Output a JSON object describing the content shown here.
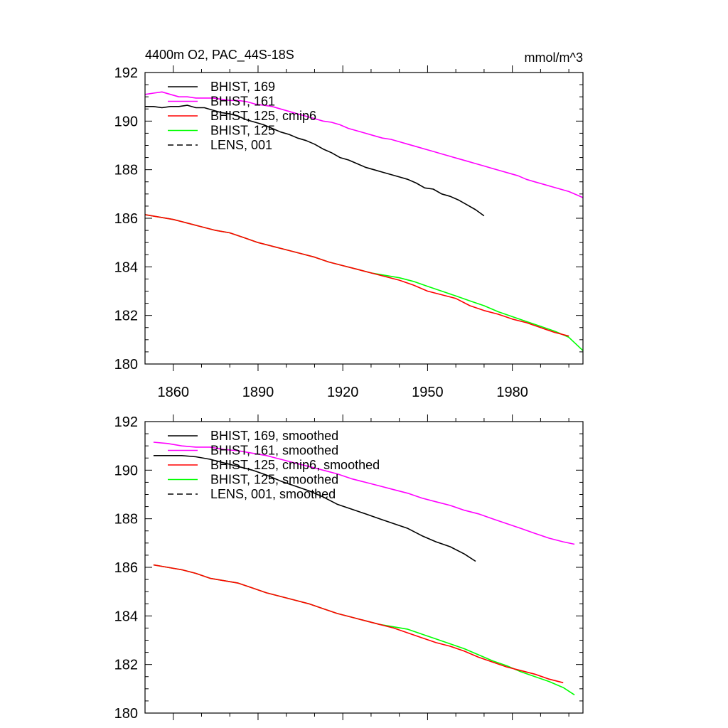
{
  "chart_data": [
    {
      "type": "line",
      "title": "4400m O2, PAC_44S-18S",
      "units": "mmol/m^3",
      "xlim": [
        1850,
        2005
      ],
      "ylim": [
        180,
        192
      ],
      "xticks": [
        1860,
        1890,
        1920,
        1950,
        1980
      ],
      "yticks": [
        180,
        182,
        184,
        186,
        188,
        190,
        192
      ],
      "legend_position": "top-left",
      "series": [
        {
          "name": "BHIST, 169",
          "color": "#000000",
          "dash": "solid",
          "x": [
            1850,
            1853,
            1856,
            1859,
            1862,
            1865,
            1868,
            1871,
            1874,
            1877,
            1880,
            1883,
            1886,
            1889,
            1892,
            1895,
            1898,
            1901,
            1904,
            1907,
            1910,
            1913,
            1916,
            1919,
            1922,
            1925,
            1928,
            1931,
            1934,
            1937,
            1940,
            1943,
            1946,
            1949,
            1952,
            1955,
            1958,
            1961,
            1964,
            1967,
            1970
          ],
          "y": [
            190.6,
            190.6,
            190.55,
            190.6,
            190.6,
            190.65,
            190.55,
            190.55,
            190.45,
            190.35,
            190.3,
            190.2,
            190.05,
            189.95,
            189.85,
            189.7,
            189.55,
            189.45,
            189.3,
            189.2,
            189.05,
            188.85,
            188.7,
            188.5,
            188.4,
            188.25,
            188.1,
            188.0,
            187.9,
            187.8,
            187.7,
            187.6,
            187.45,
            187.25,
            187.2,
            187.0,
            186.9,
            186.75,
            186.55,
            186.35,
            186.1
          ]
        },
        {
          "name": "BHIST, 161",
          "color": "#ff00ff",
          "dash": "solid",
          "x": [
            1850,
            1853,
            1856,
            1859,
            1862,
            1865,
            1868,
            1871,
            1874,
            1877,
            1880,
            1883,
            1886,
            1889,
            1892,
            1895,
            1898,
            1901,
            1904,
            1907,
            1910,
            1913,
            1916,
            1919,
            1922,
            1925,
            1928,
            1931,
            1934,
            1937,
            1940,
            1943,
            1946,
            1949,
            1952,
            1955,
            1958,
            1961,
            1964,
            1967,
            1970,
            1973,
            1976,
            1979,
            1982,
            1985,
            1988,
            1991,
            1994,
            1997,
            2000,
            2003,
            2005
          ],
          "y": [
            191.1,
            191.15,
            191.2,
            191.1,
            191.0,
            191.0,
            190.95,
            190.95,
            190.95,
            190.9,
            190.85,
            190.85,
            190.8,
            190.7,
            190.65,
            190.6,
            190.5,
            190.4,
            190.3,
            190.2,
            190.1,
            190.0,
            189.95,
            189.85,
            189.7,
            189.6,
            189.5,
            189.4,
            189.3,
            189.25,
            189.15,
            189.05,
            188.95,
            188.85,
            188.75,
            188.65,
            188.55,
            188.45,
            188.35,
            188.25,
            188.15,
            188.05,
            187.95,
            187.85,
            187.75,
            187.6,
            187.5,
            187.4,
            187.3,
            187.2,
            187.1,
            186.95,
            186.85
          ]
        },
        {
          "name": "BHIST, 125, cmip6",
          "color": "#ff0000",
          "dash": "solid",
          "x": [
            1850,
            1855,
            1860,
            1865,
            1870,
            1875,
            1880,
            1885,
            1890,
            1895,
            1900,
            1905,
            1910,
            1915,
            1920,
            1925,
            1930,
            1935,
            1940,
            1945,
            1950,
            1955,
            1960,
            1965,
            1970,
            1975,
            1980,
            1985,
            1990,
            1995,
            2000
          ],
          "y": [
            186.15,
            186.05,
            185.95,
            185.8,
            185.65,
            185.5,
            185.4,
            185.2,
            185.0,
            184.85,
            184.7,
            184.55,
            184.4,
            184.2,
            184.05,
            183.9,
            183.75,
            183.6,
            183.45,
            183.25,
            183.0,
            182.85,
            182.7,
            182.4,
            182.2,
            182.05,
            181.85,
            181.7,
            181.5,
            181.3,
            181.15
          ]
        },
        {
          "name": "BHIST, 125",
          "color": "#00ff00",
          "dash": "solid",
          "x": [
            1850,
            1855,
            1860,
            1865,
            1870,
            1875,
            1880,
            1885,
            1890,
            1895,
            1900,
            1905,
            1910,
            1915,
            1920,
            1925,
            1930,
            1935,
            1940,
            1945,
            1950,
            1955,
            1960,
            1965,
            1970,
            1975,
            1980,
            1985,
            1990,
            1995,
            2000,
            2005
          ],
          "y": [
            186.15,
            186.05,
            185.95,
            185.8,
            185.65,
            185.5,
            185.4,
            185.2,
            185.0,
            184.85,
            184.7,
            184.55,
            184.4,
            184.2,
            184.05,
            183.9,
            183.75,
            183.65,
            183.55,
            183.4,
            183.2,
            183.0,
            182.8,
            182.6,
            182.4,
            182.15,
            181.95,
            181.75,
            181.55,
            181.35,
            181.1,
            180.55
          ]
        },
        {
          "name": "LENS, 001",
          "color": "#000000",
          "dash": "dashed",
          "x": [],
          "y": []
        }
      ]
    },
    {
      "type": "line",
      "title": "",
      "units": "",
      "xlim": [
        1850,
        2005
      ],
      "ylim": [
        180,
        192
      ],
      "xticks": [
        1860,
        1890,
        1920,
        1950,
        1980
      ],
      "yticks": [
        180,
        182,
        184,
        186,
        188,
        190,
        192
      ],
      "legend_position": "top-left",
      "series": [
        {
          "name": "BHIST, 169, smoothed",
          "color": "#000000",
          "dash": "solid",
          "x": [
            1853,
            1858,
            1863,
            1868,
            1873,
            1878,
            1883,
            1888,
            1893,
            1898,
            1903,
            1908,
            1913,
            1918,
            1923,
            1928,
            1933,
            1938,
            1943,
            1948,
            1953,
            1958,
            1963,
            1967
          ],
          "y": [
            190.6,
            190.6,
            190.6,
            190.55,
            190.45,
            190.3,
            190.15,
            190.0,
            189.8,
            189.55,
            189.35,
            189.15,
            188.9,
            188.6,
            188.4,
            188.2,
            188.0,
            187.8,
            187.6,
            187.3,
            187.05,
            186.85,
            186.55,
            186.25
          ]
        },
        {
          "name": "BHIST, 161, smoothed",
          "color": "#ff00ff",
          "dash": "solid",
          "x": [
            1853,
            1858,
            1863,
            1868,
            1873,
            1878,
            1883,
            1888,
            1893,
            1898,
            1903,
            1908,
            1913,
            1918,
            1923,
            1928,
            1933,
            1938,
            1943,
            1948,
            1953,
            1958,
            1963,
            1968,
            1973,
            1978,
            1983,
            1988,
            1993,
            1998,
            2002
          ],
          "y": [
            191.15,
            191.1,
            191.0,
            190.95,
            190.95,
            190.85,
            190.8,
            190.7,
            190.6,
            190.45,
            190.3,
            190.15,
            190.0,
            189.85,
            189.65,
            189.5,
            189.35,
            189.2,
            189.05,
            188.85,
            188.7,
            188.55,
            188.35,
            188.2,
            188.0,
            187.8,
            187.6,
            187.4,
            187.2,
            187.05,
            186.95
          ]
        },
        {
          "name": "BHIST, 125, cmip6, smoothed",
          "color": "#ff0000",
          "dash": "solid",
          "x": [
            1853,
            1858,
            1863,
            1868,
            1873,
            1878,
            1883,
            1888,
            1893,
            1898,
            1903,
            1908,
            1913,
            1918,
            1923,
            1928,
            1933,
            1938,
            1943,
            1948,
            1953,
            1958,
            1963,
            1968,
            1973,
            1978,
            1983,
            1988,
            1993,
            1998
          ],
          "y": [
            186.1,
            186.0,
            185.9,
            185.75,
            185.55,
            185.45,
            185.35,
            185.15,
            184.95,
            184.8,
            184.65,
            184.5,
            184.3,
            184.1,
            183.95,
            183.8,
            183.65,
            183.5,
            183.3,
            183.1,
            182.9,
            182.75,
            182.55,
            182.3,
            182.1,
            181.9,
            181.75,
            181.6,
            181.4,
            181.25
          ]
        },
        {
          "name": "BHIST, 125, smoothed",
          "color": "#00ff00",
          "dash": "solid",
          "x": [
            1853,
            1858,
            1863,
            1868,
            1873,
            1878,
            1883,
            1888,
            1893,
            1898,
            1903,
            1908,
            1913,
            1918,
            1923,
            1928,
            1933,
            1938,
            1943,
            1948,
            1953,
            1958,
            1963,
            1968,
            1973,
            1978,
            1983,
            1988,
            1993,
            1998,
            2002
          ],
          "y": [
            186.1,
            186.0,
            185.9,
            185.75,
            185.55,
            185.45,
            185.35,
            185.15,
            184.95,
            184.8,
            184.65,
            184.5,
            184.3,
            184.1,
            183.95,
            183.8,
            183.65,
            183.55,
            183.45,
            183.25,
            183.05,
            182.85,
            182.65,
            182.4,
            182.15,
            181.95,
            181.7,
            181.5,
            181.3,
            181.05,
            180.75
          ]
        },
        {
          "name": "LENS, 001, smoothed",
          "color": "#000000",
          "dash": "dashed",
          "x": [],
          "y": []
        }
      ]
    }
  ]
}
